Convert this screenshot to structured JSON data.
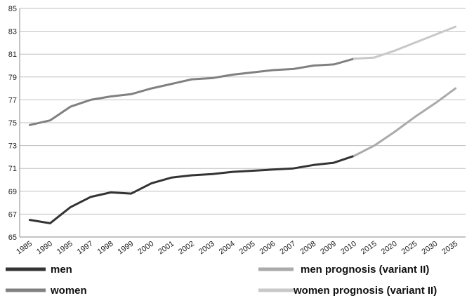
{
  "chart_data": {
    "type": "line",
    "categories": [
      "1985",
      "1990",
      "1995",
      "1997",
      "1998",
      "1999",
      "2000",
      "2001",
      "2002",
      "2003",
      "2004",
      "2005",
      "2006",
      "2007",
      "2008",
      "2009",
      "2010",
      "2015",
      "2020",
      "2025",
      "2030",
      "2035"
    ],
    "ylim": [
      65,
      85
    ],
    "yticks": [
      "65",
      "67",
      "69",
      "71",
      "73",
      "75",
      "77",
      "79",
      "81",
      "83",
      "85"
    ],
    "grid": "horizontal",
    "legend_position": "bottom",
    "series": [
      {
        "name": "men",
        "color": "#333333",
        "values": [
          66.5,
          66.2,
          67.6,
          68.5,
          68.9,
          68.8,
          69.7,
          70.2,
          70.4,
          70.5,
          70.7,
          70.8,
          70.9,
          71.0,
          71.3,
          71.5,
          72.1,
          null,
          null,
          null,
          null,
          null
        ]
      },
      {
        "name": "women",
        "color": "#808080",
        "values": [
          74.8,
          75.2,
          76.4,
          77.0,
          77.3,
          77.5,
          78.0,
          78.4,
          78.8,
          78.9,
          79.2,
          79.4,
          79.6,
          79.7,
          80.0,
          80.1,
          80.6,
          null,
          null,
          null,
          null,
          null
        ]
      },
      {
        "name": "men prognosis (variant II)",
        "color": "#aaaaaa",
        "values": [
          null,
          null,
          null,
          null,
          null,
          null,
          null,
          null,
          null,
          null,
          null,
          null,
          null,
          null,
          null,
          null,
          72.1,
          73.0,
          74.2,
          75.5,
          76.7,
          78.0
        ]
      },
      {
        "name": "women prognosis (variant II)",
        "color": "#c8c8c8",
        "values": [
          null,
          null,
          null,
          null,
          null,
          null,
          null,
          null,
          null,
          null,
          null,
          null,
          null,
          null,
          null,
          null,
          80.6,
          80.7,
          81.3,
          82.0,
          82.7,
          83.4
        ]
      }
    ]
  }
}
